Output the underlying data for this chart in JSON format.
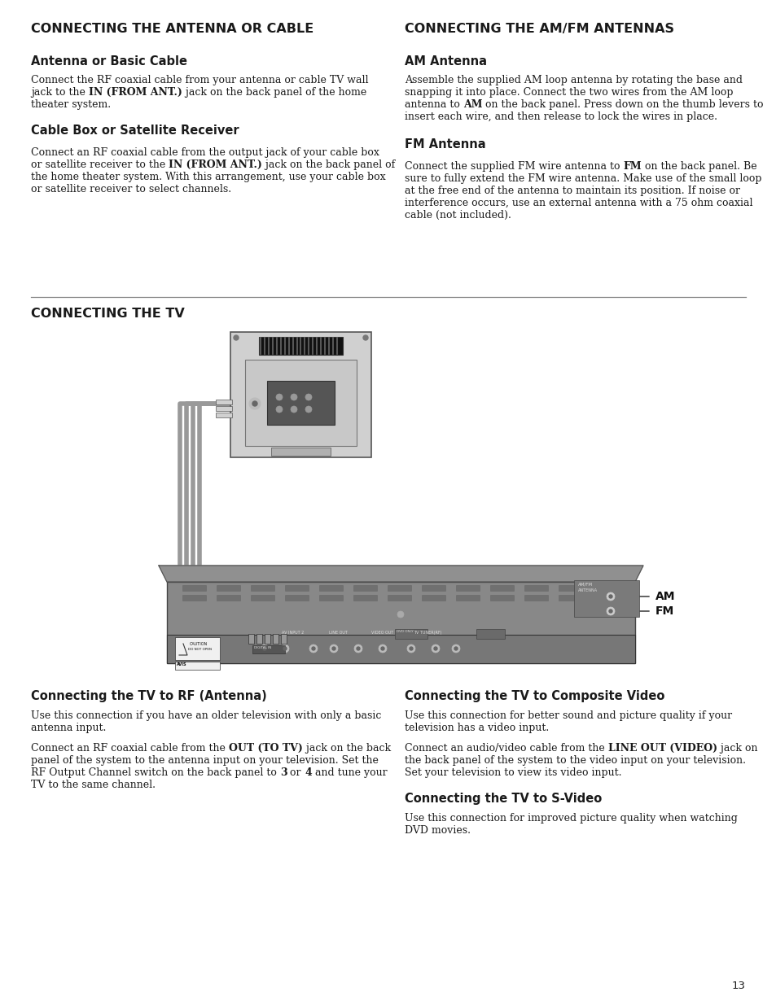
{
  "bg_color": "#ffffff",
  "page_number": "13",
  "sections": {
    "title1": "CONNECTING THE ANTENNA OR CABLE",
    "title2": "CONNECTING THE AM/FM ANTENNAS",
    "title3": "CONNECTING THE TV",
    "sub1a": "Antenna or Basic Cable",
    "sub1b": "Cable Box or Satellite Receiver",
    "sub2a": "AM Antenna",
    "sub2b": "FM Antenna",
    "sub3a": "Connecting the TV to RF (Antenna)",
    "sub3b": "Connecting the TV to Composite Video",
    "sub3c": "Connecting the TV to S-Video"
  }
}
